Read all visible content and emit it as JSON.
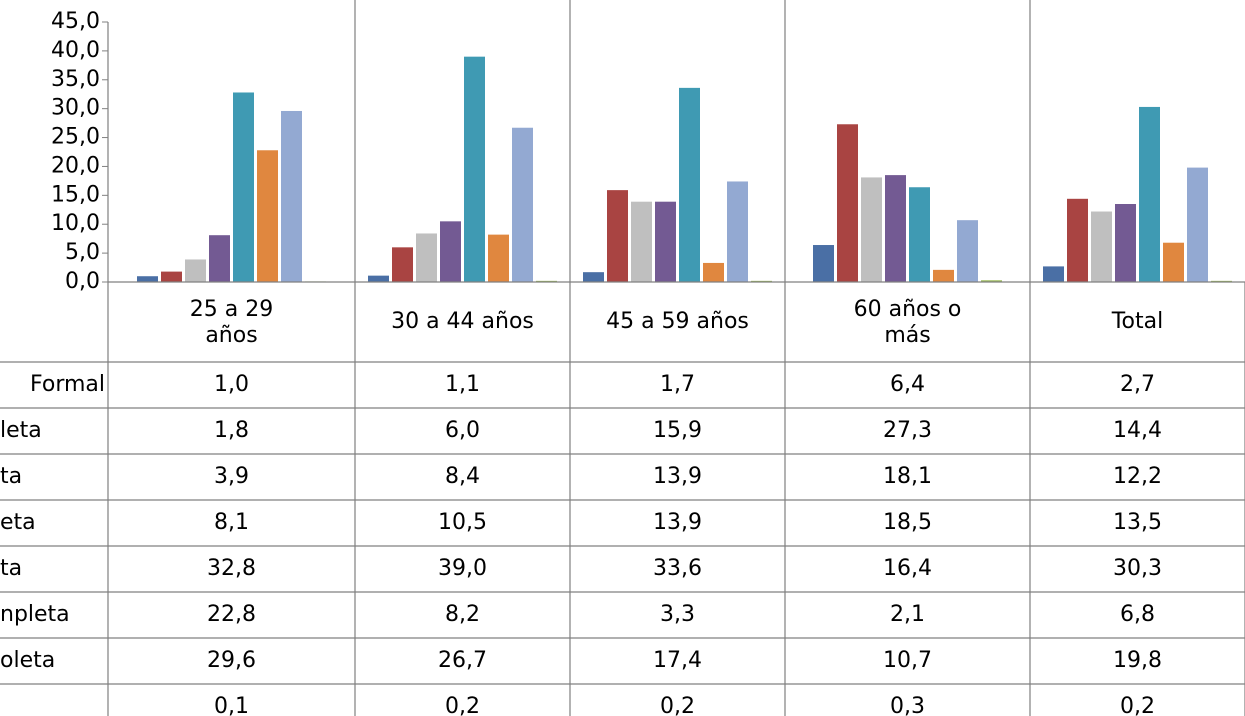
{
  "chart_data": {
    "type": "bar",
    "categories": [
      "25 a 29 años",
      "30 a 44 años",
      "45 a 59 años",
      "60 años o más",
      "Total"
    ],
    "ylim": [
      0,
      45
    ],
    "yticks": [
      {
        "value": 0,
        "label": "0,0"
      },
      {
        "value": 5,
        "label": "5,0"
      },
      {
        "value": 10,
        "label": "10,0"
      },
      {
        "value": 15,
        "label": "15,0"
      },
      {
        "value": 20,
        "label": "20,0"
      },
      {
        "value": 25,
        "label": "25,0"
      },
      {
        "value": 30,
        "label": "30,0"
      },
      {
        "value": 35,
        "label": "35,0"
      },
      {
        "value": 40,
        "label": "40,0"
      },
      {
        "value": 45,
        "label": "45,0"
      }
    ],
    "series": [
      {
        "name": "Formal",
        "color": "#4a6fa5",
        "values": [
          1.0,
          1.1,
          1.7,
          6.4,
          2.7
        ],
        "value_labels": [
          "1,0",
          "1,1",
          "1,7",
          "6,4",
          "2,7"
        ]
      },
      {
        "name": "leta",
        "color": "#a94442",
        "values": [
          1.8,
          6.0,
          15.9,
          27.3,
          14.4
        ],
        "value_labels": [
          "1,8",
          "6,0",
          "15,9",
          "27,3",
          "14,4"
        ]
      },
      {
        "name": "ta",
        "color": "#bfbfbf",
        "values": [
          3.9,
          8.4,
          13.9,
          18.1,
          12.2
        ],
        "value_labels": [
          "3,9",
          "8,4",
          "13,9",
          "18,1",
          "12,2"
        ]
      },
      {
        "name": "eta",
        "color": "#735a93",
        "values": [
          8.1,
          10.5,
          13.9,
          18.5,
          13.5
        ],
        "value_labels": [
          "8,1",
          "10,5",
          "13,9",
          "18,5",
          "13,5"
        ]
      },
      {
        "name": "ta",
        "color": "#3f9ab3",
        "values": [
          32.8,
          39.0,
          33.6,
          16.4,
          30.3
        ],
        "value_labels": [
          "32,8",
          "39,0",
          "33,6",
          "16,4",
          "30,3"
        ]
      },
      {
        "name": "npleta",
        "color": "#e0873f",
        "values": [
          22.8,
          8.2,
          3.3,
          2.1,
          6.8
        ],
        "value_labels": [
          "22,8",
          "8,2",
          "3,3",
          "2,1",
          "6,8"
        ]
      },
      {
        "name": "oleta",
        "color": "#93a9d2",
        "values": [
          29.6,
          26.7,
          17.4,
          10.7,
          19.8
        ],
        "value_labels": [
          "29,6",
          "26,7",
          "17,4",
          "10,7",
          "19,8"
        ]
      },
      {
        "color": "#9bbb59",
        "values": [
          0.1,
          0.2,
          0.2,
          0.3,
          0.2
        ],
        "value_labels": [
          "0,1",
          "0,2",
          "0,2",
          "0,3",
          "0,2"
        ]
      }
    ]
  }
}
